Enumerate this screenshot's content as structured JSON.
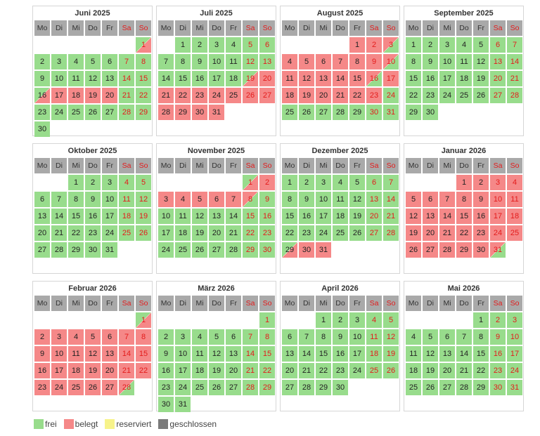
{
  "weekdays": [
    "Mo",
    "Di",
    "Mi",
    "Do",
    "Fr",
    "Sa",
    "So"
  ],
  "colors": {
    "frei": "#98dc8c",
    "belegt": "#f58888",
    "reserviert": "#f7f38a",
    "geschlossen": "#7a7a7a"
  },
  "legend": [
    {
      "key": "f",
      "label": "frei"
    },
    {
      "key": "b",
      "label": "belegt"
    },
    {
      "key": "r",
      "label": "reserviert"
    },
    {
      "key": "g",
      "label": "geschlossen"
    }
  ],
  "months": [
    {
      "title": "Juni 2025",
      "offset": 6,
      "days": 30,
      "ranges": [
        [
          "f",
          1,
          15
        ],
        [
          "fb",
          16,
          16
        ],
        [
          "b",
          17,
          20
        ],
        [
          "f",
          21,
          30
        ]
      ],
      "halves": {
        "1": "fb"
      }
    },
    {
      "title": "Juli 2025",
      "offset": 1,
      "days": 31,
      "ranges": [
        [
          "f",
          1,
          18
        ],
        [
          "fb",
          19,
          19
        ],
        [
          "b",
          20,
          31
        ]
      ]
    },
    {
      "title": "August 2025",
      "offset": 4,
      "days": 31,
      "ranges": [
        [
          "b",
          1,
          2
        ],
        [
          "bf",
          3,
          3
        ],
        [
          "b",
          4,
          9
        ],
        [
          "bf",
          10,
          10
        ],
        [
          "b",
          11,
          15
        ],
        [
          "bf",
          16,
          16
        ],
        [
          "b",
          17,
          23
        ],
        [
          "f",
          24,
          31
        ]
      ],
      "halves": {
        "1": "b"
      }
    },
    {
      "title": "September 2025",
      "offset": 0,
      "days": 30,
      "ranges": [
        [
          "f",
          1,
          30
        ]
      ]
    },
    {
      "title": "Oktober 2025",
      "offset": 2,
      "days": 31,
      "ranges": [
        [
          "f",
          1,
          31
        ]
      ]
    },
    {
      "title": "November 2025",
      "offset": 5,
      "days": 30,
      "ranges": [
        [
          "fb",
          1,
          1
        ],
        [
          "b",
          2,
          7
        ],
        [
          "bf",
          8,
          8
        ],
        [
          "f",
          9,
          30
        ]
      ]
    },
    {
      "title": "Dezember 2025",
      "offset": 0,
      "days": 31,
      "ranges": [
        [
          "f",
          1,
          28
        ],
        [
          "fb",
          29,
          29
        ],
        [
          "b",
          30,
          31
        ]
      ]
    },
    {
      "title": "Januar 2026",
      "offset": 3,
      "days": 31,
      "ranges": [
        [
          "b",
          1,
          30
        ],
        [
          "bf",
          31,
          31
        ]
      ]
    },
    {
      "title": "Februar 2026",
      "offset": 6,
      "days": 28,
      "ranges": [
        [
          "fb",
          1,
          1
        ],
        [
          "b",
          2,
          27
        ],
        [
          "bf",
          28,
          28
        ]
      ]
    },
    {
      "title": "März 2026",
      "offset": 6,
      "days": 31,
      "ranges": [
        [
          "f",
          1,
          31
        ]
      ]
    },
    {
      "title": "April 2026",
      "offset": 2,
      "days": 30,
      "ranges": [
        [
          "f",
          1,
          30
        ]
      ]
    },
    {
      "title": "Mai 2026",
      "offset": 4,
      "days": 31,
      "ranges": [
        [
          "f",
          1,
          31
        ]
      ]
    }
  ]
}
